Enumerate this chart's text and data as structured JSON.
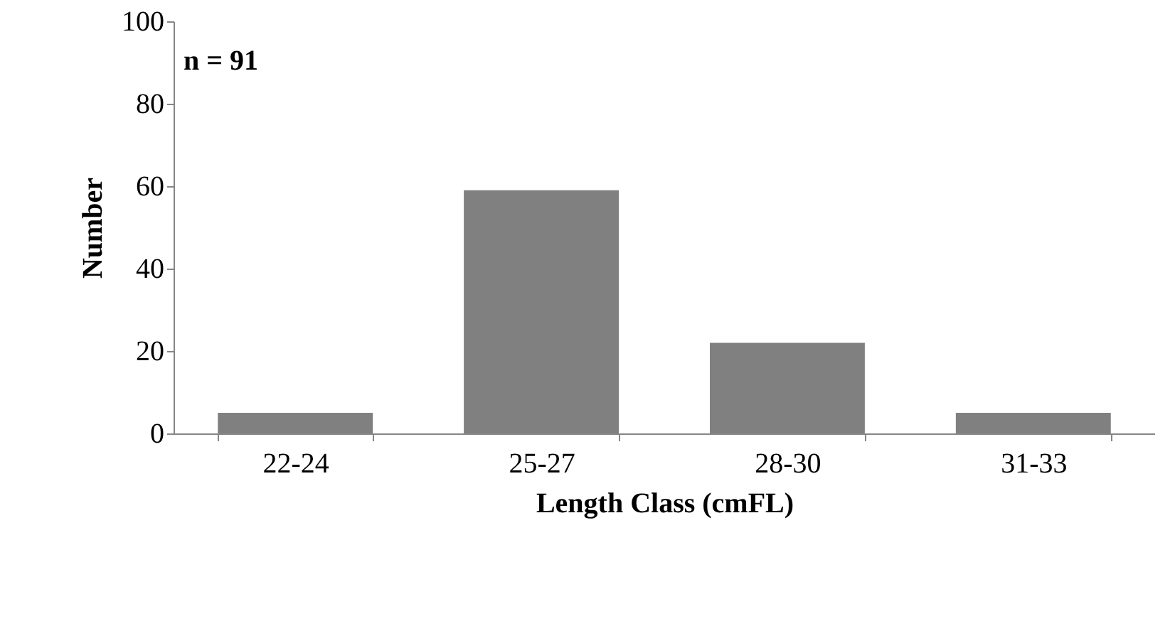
{
  "chart_data": {
    "type": "bar",
    "xlabel": "Length Class (cmFL)",
    "ylabel": "Number",
    "categories": [
      "22-24",
      "25-27",
      "28-30",
      "31-33"
    ],
    "values": [
      5,
      59,
      22,
      5
    ],
    "color": "#808080",
    "ylim": [
      0,
      100
    ],
    "yticks": [
      0,
      20,
      40,
      60,
      80,
      100
    ],
    "grid": false,
    "annotations": [
      "n = 91"
    ]
  }
}
